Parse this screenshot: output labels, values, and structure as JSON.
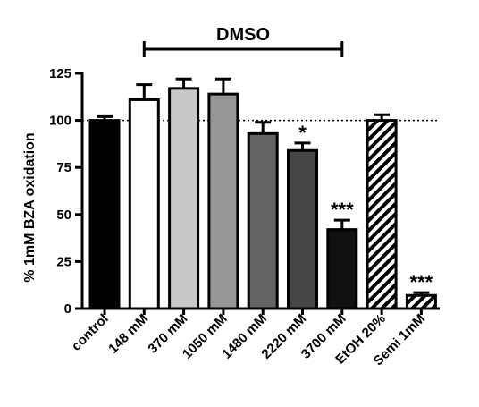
{
  "chart_data": {
    "type": "bar",
    "title": "",
    "xlabel": "",
    "ylabel": "% 1mM BZA oxidation",
    "ylim": [
      0,
      125
    ],
    "yticks": [
      0,
      25,
      50,
      75,
      100,
      125
    ],
    "reference_line": {
      "y": 100,
      "style": "dotted"
    },
    "grid": false,
    "categories": [
      "control",
      "148 mM",
      "370 mM",
      "1050 mM",
      "1480 mM",
      "2220 mM",
      "3700 mM",
      "EtOH 20%",
      "Semi 1mM"
    ],
    "values": [
      100,
      111,
      117,
      114,
      93,
      84,
      42,
      100,
      7
    ],
    "errors": [
      2,
      8,
      5,
      8,
      6,
      4,
      5,
      3,
      1.5
    ],
    "fills": [
      "#000000",
      "#ffffff",
      "#c8c8c8",
      "#969696",
      "#646464",
      "#464646",
      "#111111",
      "hatch",
      "hatch"
    ],
    "significance": [
      "",
      "",
      "",
      "",
      "",
      "*",
      "***",
      "",
      "***"
    ],
    "bracket": {
      "label": "DMSO",
      "from_category": "148 mM",
      "to_category": "3700 mM"
    }
  }
}
